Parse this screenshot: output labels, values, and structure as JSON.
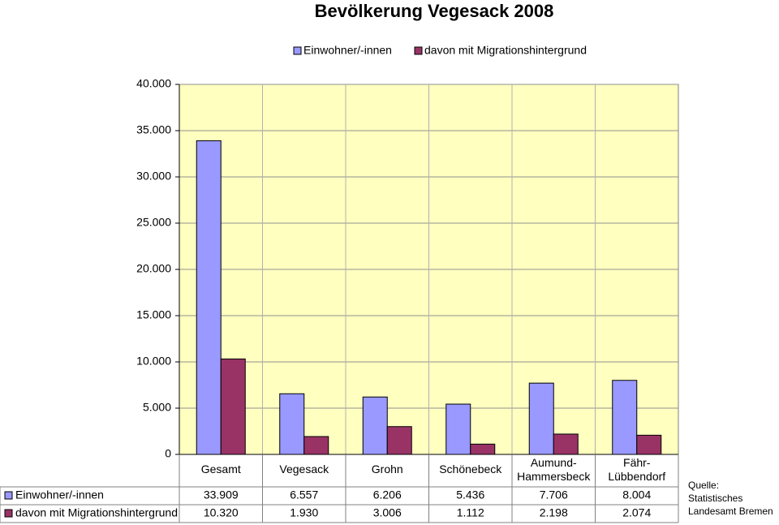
{
  "chart_data": {
    "type": "bar",
    "title": "Bevölkerung Vegesack 2008",
    "categories": [
      "Gesamt",
      "Vegesack",
      "Grohn",
      "Schönebeck",
      "Aumund-\nHammersbeck",
      "Fähr-\nLübbendorf"
    ],
    "series": [
      {
        "name": "Einwohner/-innen",
        "color": "#9999ff",
        "values": [
          33909,
          6557,
          6206,
          5436,
          7706,
          8004
        ],
        "value_labels": [
          "33.909",
          "6.557",
          "6.206",
          "5.436",
          "7.706",
          "8.004"
        ]
      },
      {
        "name": "davon mit Migrationshintergrund",
        "color": "#993366",
        "values": [
          10320,
          1930,
          3006,
          1112,
          2198,
          2074
        ],
        "value_labels": [
          "10.320",
          "1.930",
          "3.006",
          "1.112",
          "2.198",
          "2.074"
        ]
      }
    ],
    "ylim": [
      0,
      40000
    ],
    "yticks": [
      0,
      {
        "value": 5000,
        "label": "5.000"
      },
      {
        "value": 10000,
        "label": "10.000"
      },
      {
        "value": 15000,
        "label": "15.000"
      },
      {
        "value": 20000,
        "label": "20.000"
      },
      {
        "value": 25000,
        "label": "25.000"
      },
      {
        "value": 30000,
        "label": "30.000"
      },
      {
        "value": 35000,
        "label": "35.000"
      },
      {
        "value": 40000,
        "label": "40.000"
      }
    ],
    "grid": true,
    "legend": "top",
    "plot_background": "#ffffc0",
    "source": [
      "Quelle:",
      "Statistisches",
      "Landesamt Bremen"
    ]
  }
}
